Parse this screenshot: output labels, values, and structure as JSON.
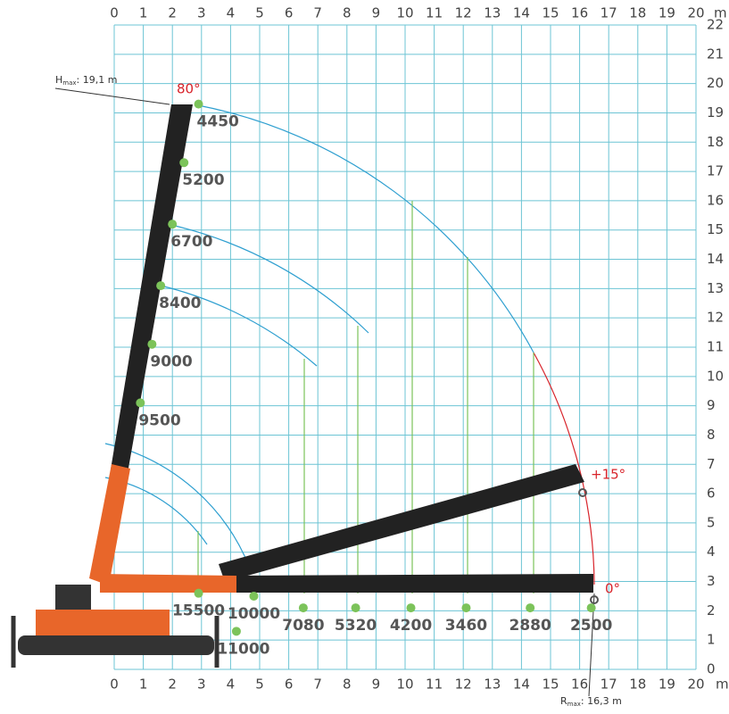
{
  "chart_data": {
    "type": "load_chart",
    "x_unit": "m",
    "xlim": [
      0,
      20
    ],
    "ylim": [
      0,
      22
    ],
    "xticks": [
      0,
      1,
      2,
      3,
      4,
      5,
      6,
      7,
      8,
      9,
      10,
      11,
      12,
      13,
      14,
      15,
      16,
      17,
      18,
      19,
      20
    ],
    "yticks": [
      0,
      1,
      2,
      3,
      4,
      5,
      6,
      7,
      8,
      9,
      10,
      11,
      12,
      13,
      14,
      15,
      16,
      17,
      18,
      19,
      20,
      21,
      22
    ],
    "grid": true,
    "grid_color": "#6cc4d4",
    "point_color": "#7cc35a",
    "points": {
      "x": [
        2.9,
        2.4,
        2.0,
        1.6,
        1.3,
        0.9,
        2.9,
        4.8,
        4.2,
        6.5,
        8.3,
        10.2,
        12.1,
        14.3,
        16.4
      ],
      "y": [
        19.3,
        17.3,
        15.2,
        13.1,
        11.1,
        9.1,
        2.6,
        2.5,
        1.3,
        2.1,
        2.1,
        2.1,
        2.1,
        2.1,
        2.1
      ],
      "labels": [
        "4450",
        "5200",
        "6700",
        "8400",
        "9000",
        "9500",
        "15500",
        "10000",
        "11000",
        "7080",
        "5320",
        "4200",
        "3460",
        "2880",
        "2500"
      ]
    },
    "angles": [
      "80°",
      "+15°",
      "0°"
    ],
    "h_max": {
      "symbol": "H",
      "subscript": "max",
      "text": ": 19,1 m"
    },
    "r_max": {
      "symbol": "R",
      "subscript": "max",
      "text": ": 16,3 m"
    }
  }
}
